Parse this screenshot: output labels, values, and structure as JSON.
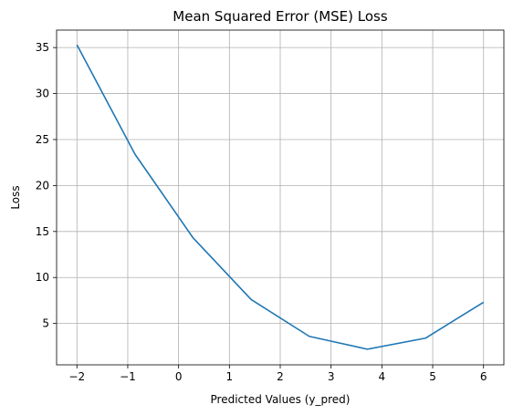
{
  "chart_data": {
    "type": "line",
    "title": "Mean Squared Error (MSE) Loss",
    "xlabel": "Predicted Values (y_pred)",
    "ylabel": "Loss",
    "xlim": [
      -2.4,
      6.4
    ],
    "ylim": [
      0.5,
      36.9
    ],
    "grid": true,
    "x_ticks": [
      -2,
      -1,
      0,
      1,
      2,
      3,
      4,
      5,
      6
    ],
    "x_tick_labels": [
      "−2",
      "−1",
      "0",
      "1",
      "2",
      "3",
      "4",
      "5",
      "6"
    ],
    "y_ticks": [
      5,
      10,
      15,
      20,
      25,
      30,
      35
    ],
    "y_tick_labels": [
      "5",
      "10",
      "15",
      "20",
      "25",
      "30",
      "35"
    ],
    "series": [
      {
        "color": "#1f77b4",
        "x": [
          -2,
          -0.857,
          0.286,
          1.429,
          2.571,
          3.714,
          4.857,
          6
        ],
        "y": [
          35.3,
          23.4,
          14.3,
          7.6,
          3.6,
          2.2,
          3.4,
          7.3
        ]
      }
    ]
  }
}
